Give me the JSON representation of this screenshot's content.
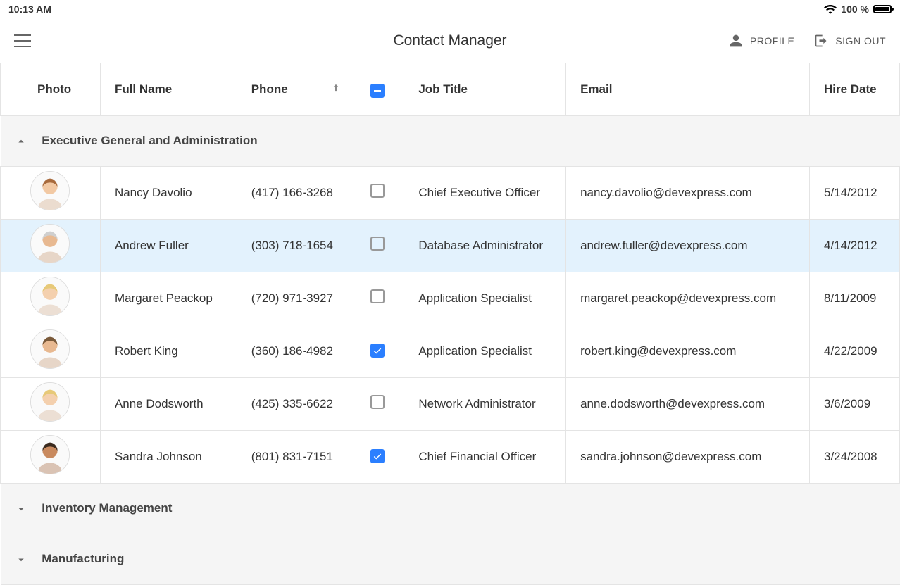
{
  "status_bar": {
    "time": "10:13 AM",
    "battery_pct": "100 %"
  },
  "app": {
    "title": "Contact Manager",
    "profile_label": "PROFILE",
    "signout_label": "SIGN OUT"
  },
  "columns": {
    "photo": "Photo",
    "full_name": "Full Name",
    "phone": "Phone",
    "job_title": "Job Title",
    "email": "Email",
    "hire_date": "Hire Date"
  },
  "colors": {
    "accent": "#2b7fff",
    "selected_row_bg": "#e3f2fd",
    "group_bg": "#f5f5f5",
    "border": "#e4e4e4"
  },
  "groups": [
    {
      "name": "Executive General and Administration",
      "expanded": true,
      "rows": [
        {
          "name": "Nancy Davolio",
          "phone": "(417) 166-3268",
          "checked": false,
          "job": "Chief Executive Officer",
          "email": "nancy.davolio@devexpress.com",
          "hire": "5/14/2012",
          "selected": false,
          "skin": "#f2c9a4",
          "hair": "#a86a3c"
        },
        {
          "name": "Andrew Fuller",
          "phone": "(303) 718-1654",
          "checked": false,
          "job": "Database Administrator",
          "email": "andrew.fuller@devexpress.com",
          "hire": "4/14/2012",
          "selected": true,
          "skin": "#e8b991",
          "hair": "#cfcfcf"
        },
        {
          "name": "Margaret Peackop",
          "phone": "(720) 971-3927",
          "checked": false,
          "job": "Application Specialist",
          "email": "margaret.peackop@devexpress.com",
          "hire": "8/11/2009",
          "selected": false,
          "skin": "#f4d0ae",
          "hair": "#e7c978"
        },
        {
          "name": "Robert King",
          "phone": "(360) 186-4982",
          "checked": true,
          "job": "Application Specialist",
          "email": "robert.king@devexpress.com",
          "hire": "4/22/2009",
          "selected": false,
          "skin": "#e8b991",
          "hair": "#7a5a3a"
        },
        {
          "name": "Anne Dodsworth",
          "phone": "(425) 335-6622",
          "checked": false,
          "job": "Network Administrator",
          "email": "anne.dodsworth@devexpress.com",
          "hire": "3/6/2009",
          "selected": false,
          "skin": "#f4d0ae",
          "hair": "#e7c978"
        },
        {
          "name": "Sandra Johnson",
          "phone": "(801) 831-7151",
          "checked": true,
          "job": "Chief Financial Officer",
          "email": "sandra.johnson@devexpress.com",
          "hire": "3/24/2008",
          "selected": false,
          "skin": "#c98a5f",
          "hair": "#3a2a1e"
        }
      ]
    },
    {
      "name": "Inventory Management",
      "expanded": false,
      "rows": []
    },
    {
      "name": "Manufacturing",
      "expanded": false,
      "rows": []
    }
  ]
}
